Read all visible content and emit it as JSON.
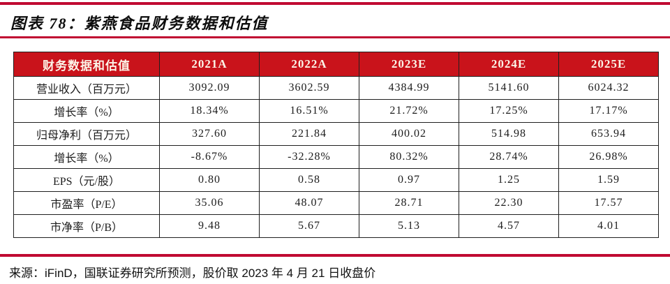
{
  "title": "图表 78：紫燕食品财务数据和估值",
  "colors": {
    "rule_red": "#c00a32",
    "header_bg": "#c9131b",
    "header_text": "#fcf4e8",
    "table_border": "#1f1f1f",
    "text": "#1c1c1c"
  },
  "table": {
    "headers": [
      "财务数据和估值",
      "2021A",
      "2022A",
      "2023E",
      "2024E",
      "2025E"
    ],
    "rows": [
      {
        "label": "营业收入（百万元）",
        "values": [
          "3092.09",
          "3602.59",
          "4384.99",
          "5141.60",
          "6024.32"
        ]
      },
      {
        "label": "增长率（%）",
        "values": [
          "18.34%",
          "16.51%",
          "21.72%",
          "17.25%",
          "17.17%"
        ]
      },
      {
        "label": "归母净利（百万元）",
        "values": [
          "327.60",
          "221.84",
          "400.02",
          "514.98",
          "653.94"
        ]
      },
      {
        "label": "增长率（%）",
        "values": [
          "-8.67%",
          "-32.28%",
          "80.32%",
          "28.74%",
          "26.98%"
        ]
      },
      {
        "label": "EPS（元/股）",
        "values": [
          "0.80",
          "0.58",
          "0.97",
          "1.25",
          "1.59"
        ]
      },
      {
        "label": "市盈率（P/E）",
        "values": [
          "35.06",
          "48.07",
          "28.71",
          "22.30",
          "17.57"
        ]
      },
      {
        "label": "市净率（P/B）",
        "values": [
          "9.48",
          "5.67",
          "5.13",
          "4.57",
          "4.01"
        ]
      }
    ]
  },
  "footer": {
    "source": "来源：iFinD，国联证券研究所预测，股价取 2023 年 4 月 21 日收盘价"
  },
  "chart_data": {
    "type": "table",
    "title": "图表 78：紫燕食品财务数据和估值",
    "columns": [
      "财务数据和估值",
      "2021A",
      "2022A",
      "2023E",
      "2024E",
      "2025E"
    ],
    "rows": [
      [
        "营业收入（百万元）",
        3092.09,
        3602.59,
        4384.99,
        5141.6,
        6024.32
      ],
      [
        "增长率（%）",
        "18.34%",
        "16.51%",
        "21.72%",
        "17.25%",
        "17.17%"
      ],
      [
        "归母净利（百万元）",
        327.6,
        221.84,
        400.02,
        514.98,
        653.94
      ],
      [
        "增长率（%）",
        "-8.67%",
        "-32.28%",
        "80.32%",
        "28.74%",
        "26.98%"
      ],
      [
        "EPS（元/股）",
        0.8,
        0.58,
        0.97,
        1.25,
        1.59
      ],
      [
        "市盈率（P/E）",
        35.06,
        48.07,
        28.71,
        22.3,
        17.57
      ],
      [
        "市净率（P/B）",
        9.48,
        5.67,
        5.13,
        4.57,
        4.01
      ]
    ],
    "source": "来源：iFinD，国联证券研究所预测，股价取 2023 年 4 月 21 日收盘价"
  }
}
